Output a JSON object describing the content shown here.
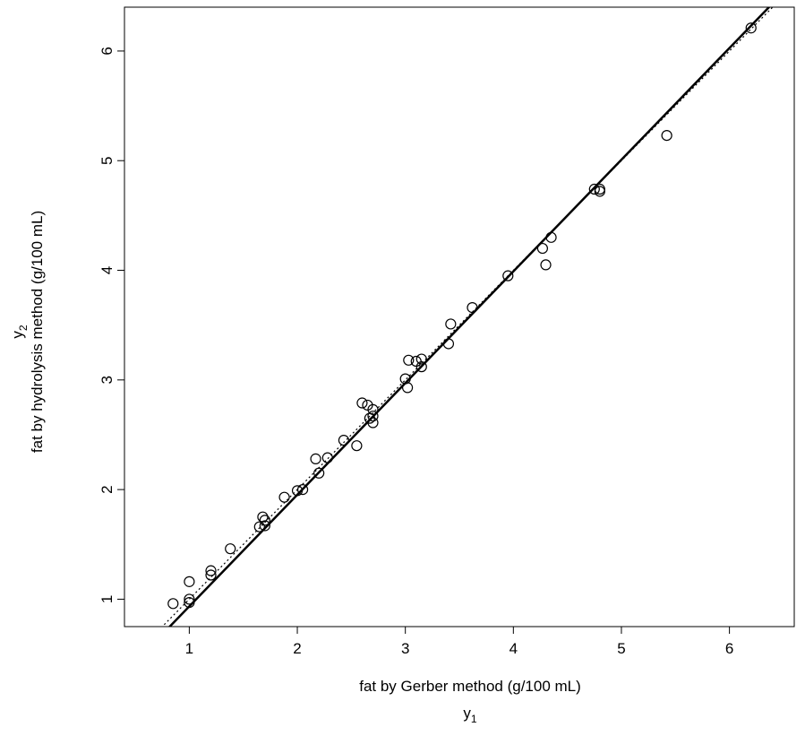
{
  "chart_data": {
    "type": "scatter",
    "xlabel": "fat by Gerber method (g/100 mL)",
    "ylabel": "fat by hydrolysis method (g/100 mL)",
    "x_symbol": "y",
    "x_symbol_sub": "1",
    "y_symbol": "y",
    "y_symbol_sub": "2",
    "xlim": [
      0.4,
      6.6
    ],
    "ylim": [
      0.75,
      6.4
    ],
    "x_ticks": [
      "1",
      "2",
      "3",
      "4",
      "5",
      "6"
    ],
    "y_ticks": [
      "1",
      "2",
      "3",
      "4",
      "5",
      "6"
    ],
    "grid": false,
    "points": [
      [
        0.85,
        0.96
      ],
      [
        1.0,
        0.97
      ],
      [
        1.0,
        1.0
      ],
      [
        1.0,
        1.16
      ],
      [
        1.2,
        1.22
      ],
      [
        1.2,
        1.26
      ],
      [
        1.38,
        1.46
      ],
      [
        1.65,
        1.66
      ],
      [
        1.68,
        1.75
      ],
      [
        1.7,
        1.67
      ],
      [
        1.7,
        1.72
      ],
      [
        1.88,
        1.93
      ],
      [
        2.0,
        1.99
      ],
      [
        2.05,
        2.0
      ],
      [
        2.17,
        2.28
      ],
      [
        2.2,
        2.15
      ],
      [
        2.28,
        2.29
      ],
      [
        2.43,
        2.45
      ],
      [
        2.55,
        2.4
      ],
      [
        2.6,
        2.79
      ],
      [
        2.65,
        2.77
      ],
      [
        2.67,
        2.65
      ],
      [
        2.7,
        2.61
      ],
      [
        2.7,
        2.67
      ],
      [
        2.7,
        2.73
      ],
      [
        3.0,
        3.01
      ],
      [
        3.02,
        2.93
      ],
      [
        3.03,
        3.18
      ],
      [
        3.1,
        3.17
      ],
      [
        3.15,
        3.12
      ],
      [
        3.15,
        3.19
      ],
      [
        3.4,
        3.33
      ],
      [
        3.42,
        3.51
      ],
      [
        3.62,
        3.66
      ],
      [
        3.95,
        3.95
      ],
      [
        4.27,
        4.2
      ],
      [
        4.3,
        4.05
      ],
      [
        4.35,
        4.3
      ],
      [
        4.75,
        4.74
      ],
      [
        4.8,
        4.72
      ],
      [
        4.8,
        4.74
      ],
      [
        5.42,
        5.23
      ],
      [
        6.2,
        6.21
      ]
    ],
    "lines": [
      {
        "type": "solid",
        "intercept": -0.084,
        "slope": 1.0185
      },
      {
        "type": "dotted",
        "intercept": 0.0,
        "slope": 1.0
      }
    ]
  }
}
